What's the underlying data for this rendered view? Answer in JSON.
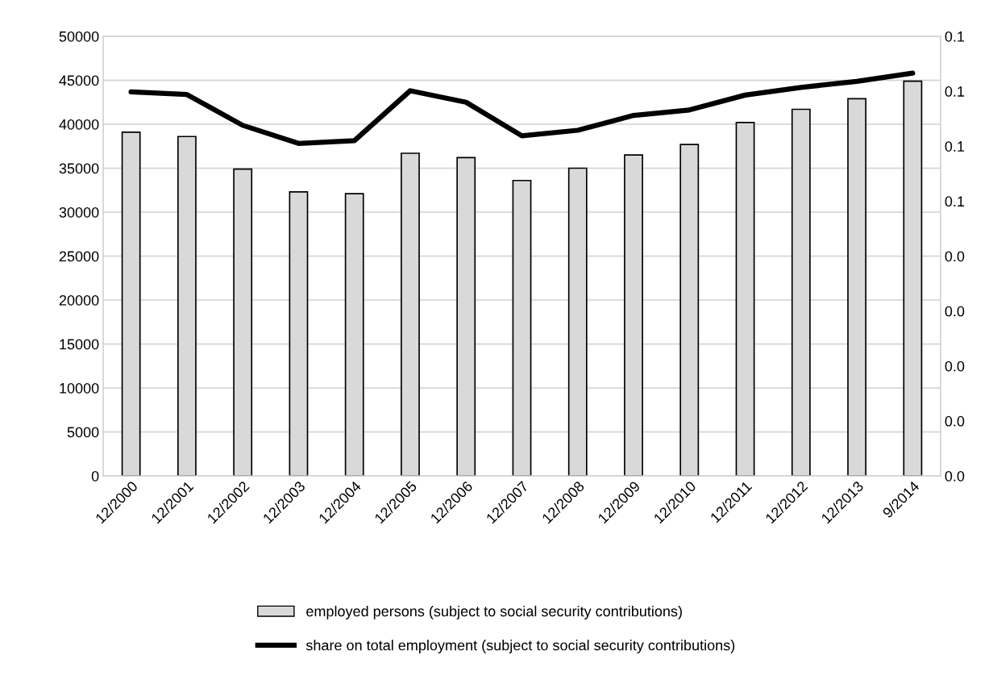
{
  "chart_data": {
    "type": "bar",
    "categories": [
      "12/2000",
      "12/2001",
      "12/2002",
      "12/2003",
      "12/2004",
      "12/2005",
      "12/2006",
      "12/2007",
      "12/2008",
      "12/2009",
      "12/2010",
      "12/2011",
      "12/2012",
      "12/2013",
      "9/2014"
    ],
    "series": [
      {
        "name": "employed persons (subject to social security contributions)",
        "color": "#d9d9d9",
        "values": [
          39100,
          38600,
          34900,
          32300,
          32100,
          36700,
          36200,
          33600,
          35000,
          36500,
          37700,
          40200,
          41700,
          42900,
          44900
        ]
      },
      {
        "name": "share on total employment (subject to social security contributions)",
        "type": "line",
        "axis": "y2",
        "color": "#000000",
        "values": [
          0.0699,
          0.0694,
          0.0638,
          0.0605,
          0.061,
          0.0701,
          0.068,
          0.0619,
          0.0629,
          0.0656,
          0.0666,
          0.0693,
          0.0707,
          0.0718,
          0.0733
        ]
      }
    ],
    "ylim": [
      0,
      50000
    ],
    "yticks": [
      0,
      5000,
      10000,
      15000,
      20000,
      25000,
      30000,
      35000,
      40000,
      45000,
      50000
    ],
    "y2lim": [
      0,
      0.08
    ],
    "y2ticks": [
      {
        "value": 0,
        "label": "0.0"
      },
      {
        "value": 0.01,
        "label": "0.0"
      },
      {
        "value": 0.02,
        "label": "0.0"
      },
      {
        "value": 0.03,
        "label": "0.0"
      },
      {
        "value": 0.04,
        "label": "0.0"
      },
      {
        "value": 0.05,
        "label": "0.1"
      },
      {
        "value": 0.06,
        "label": "0.1"
      },
      {
        "value": 0.07,
        "label": "0.1"
      },
      {
        "value": 0.08,
        "label": "0.1"
      }
    ],
    "grid": "y",
    "legend": "bottom",
    "marker": "none",
    "line_style": "solid"
  }
}
